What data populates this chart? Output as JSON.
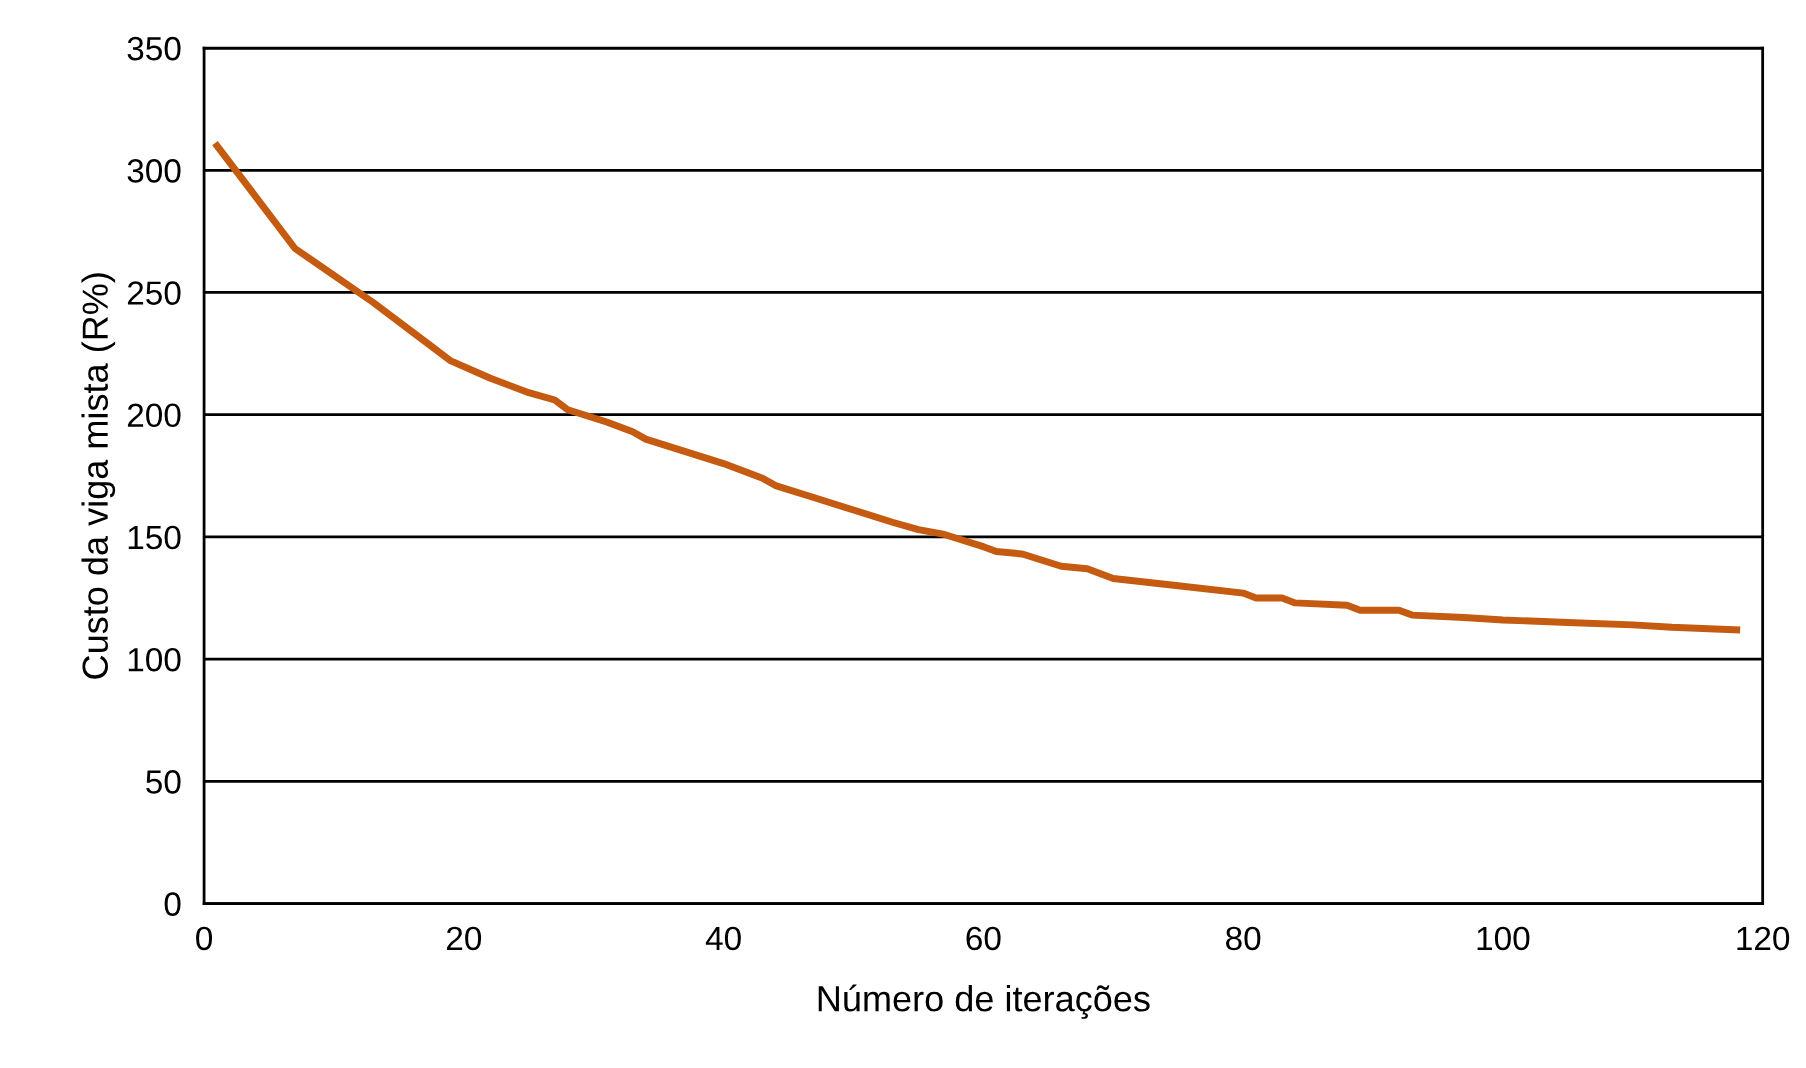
{
  "chart_data": {
    "type": "line",
    "xlabel": "Número de iterações",
    "ylabel": "Custo da viga mista (R%)",
    "x": [
      1,
      4,
      7,
      10,
      13,
      17,
      19,
      22,
      25,
      27,
      28,
      31,
      33,
      34,
      37,
      40,
      43,
      44,
      47,
      50,
      53,
      55,
      57,
      60,
      61,
      63,
      66,
      68,
      70,
      75,
      80,
      81,
      83,
      84,
      88,
      89,
      92,
      93,
      97,
      100,
      105,
      110,
      113,
      118
    ],
    "series": [
      {
        "color": "#c55a11",
        "values": [
          310,
          289,
          268,
          257,
          246,
          230,
          222,
          215,
          209,
          206,
          202,
          197,
          193,
          190,
          185,
          180,
          174,
          171,
          166,
          161,
          156,
          153,
          151,
          146,
          144,
          143,
          138,
          137,
          133,
          130,
          127,
          125,
          125,
          123,
          122,
          120,
          120,
          118,
          117,
          116,
          115,
          114,
          113,
          112
        ]
      }
    ],
    "xlim": [
      0,
      120
    ],
    "xticks": [
      0,
      20,
      40,
      60,
      80,
      100,
      120
    ],
    "ylim": [
      0,
      350
    ],
    "yticks": [
      0,
      50,
      100,
      150,
      200,
      250,
      300,
      350
    ],
    "grid": "y",
    "marker": "none",
    "line_style": "solid"
  }
}
